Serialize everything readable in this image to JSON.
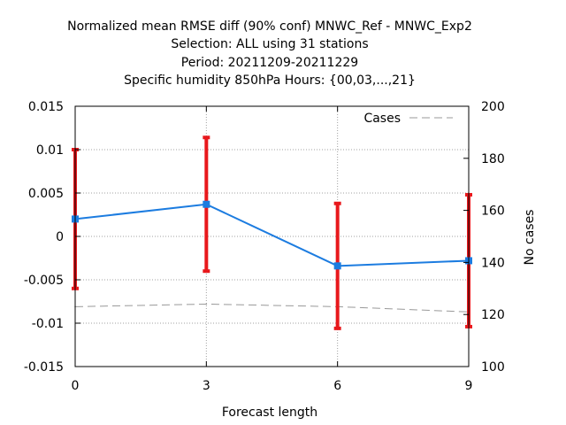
{
  "chart_data": {
    "type": "line",
    "title_lines": [
      "Normalized mean RMSE diff (90% conf) MNWC_Ref - MNWC_Exp2",
      "Selection: ALL using    31 stations",
      "Period: 20211209-20211229",
      "Specific humidity 850hPa   Hours: {00,03,...,21}"
    ],
    "xlabel": "Forecast length",
    "ylabel": "",
    "y2label": "No cases",
    "x": [
      0,
      3,
      6,
      9
    ],
    "xlim": [
      0,
      9
    ],
    "ylim": [
      -0.015,
      0.015
    ],
    "y2lim": [
      100,
      200
    ],
    "x_ticks": [
      0,
      3,
      6,
      9
    ],
    "x_tick_labels": [
      "0",
      "3",
      "6",
      "9"
    ],
    "y_ticks": [
      -0.015,
      -0.01,
      -0.005,
      0,
      0.005,
      0.01,
      0.015
    ],
    "y_tick_labels": [
      "-0.015",
      "-0.01",
      "-0.005",
      "0",
      "0.005",
      "0.01",
      "0.015"
    ],
    "y2_ticks": [
      100,
      120,
      140,
      160,
      180,
      200
    ],
    "y2_tick_labels": [
      "100",
      "120",
      "140",
      "160",
      "180",
      "200"
    ],
    "grid": true,
    "series": [
      {
        "name": "RMSE diff",
        "axis": "left",
        "values": [
          0.002,
          0.0037,
          -0.0034,
          -0.0028
        ],
        "err_low": [
          -0.006,
          -0.004,
          -0.0106,
          -0.0104
        ],
        "err_high": [
          0.01,
          0.0114,
          0.0038,
          0.0048
        ],
        "color": "#1c7ce0",
        "errorbar_color": "#e8181c"
      },
      {
        "name": "Cases",
        "axis": "right",
        "values": [
          123,
          124,
          123,
          121
        ],
        "color": "#999999",
        "dashed": true
      }
    ],
    "legend": {
      "label": "Cases",
      "placement": "top-right"
    }
  }
}
